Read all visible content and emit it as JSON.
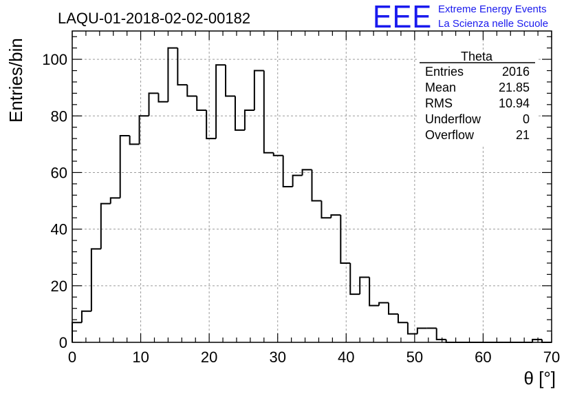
{
  "chart_data": {
    "type": "bar",
    "title": "LAQU-01-2018-02-02-00182",
    "xlabel": "θ [°]",
    "ylabel": "Entries/bin",
    "xlim": [
      0,
      70
    ],
    "ylim": [
      0,
      110
    ],
    "grid": true,
    "bin_width": 1.4,
    "x_ticks": [
      0,
      10,
      20,
      30,
      40,
      50,
      60,
      70
    ],
    "y_ticks": [
      0,
      20,
      40,
      60,
      80,
      100
    ],
    "values": [
      7,
      11,
      33,
      49,
      51,
      73,
      70,
      80,
      88,
      85,
      104,
      91,
      87,
      82,
      72,
      98,
      87,
      75,
      82,
      96,
      67,
      66,
      55,
      59,
      61,
      50,
      44,
      45,
      28,
      17,
      23,
      13,
      14,
      10,
      7,
      3,
      5,
      5,
      1,
      0,
      0,
      0,
      0,
      0,
      0,
      0,
      0,
      0,
      1,
      0
    ]
  },
  "stats_box": {
    "name": "Theta",
    "rows": [
      {
        "label": "Entries",
        "value": "2016"
      },
      {
        "label": "Mean",
        "value": "21.85"
      },
      {
        "label": "RMS",
        "value": "10.94"
      },
      {
        "label": "Underflow",
        "value": "0"
      },
      {
        "label": "Overflow",
        "value": "21"
      }
    ]
  },
  "logo": {
    "mark": "EEE",
    "line1": "Extreme Energy Events",
    "line2": "La Scienza nelle Scuole"
  },
  "colors": {
    "histogram": "#000000",
    "grid": "#9a9a9a",
    "logo": "#1a1aee"
  }
}
